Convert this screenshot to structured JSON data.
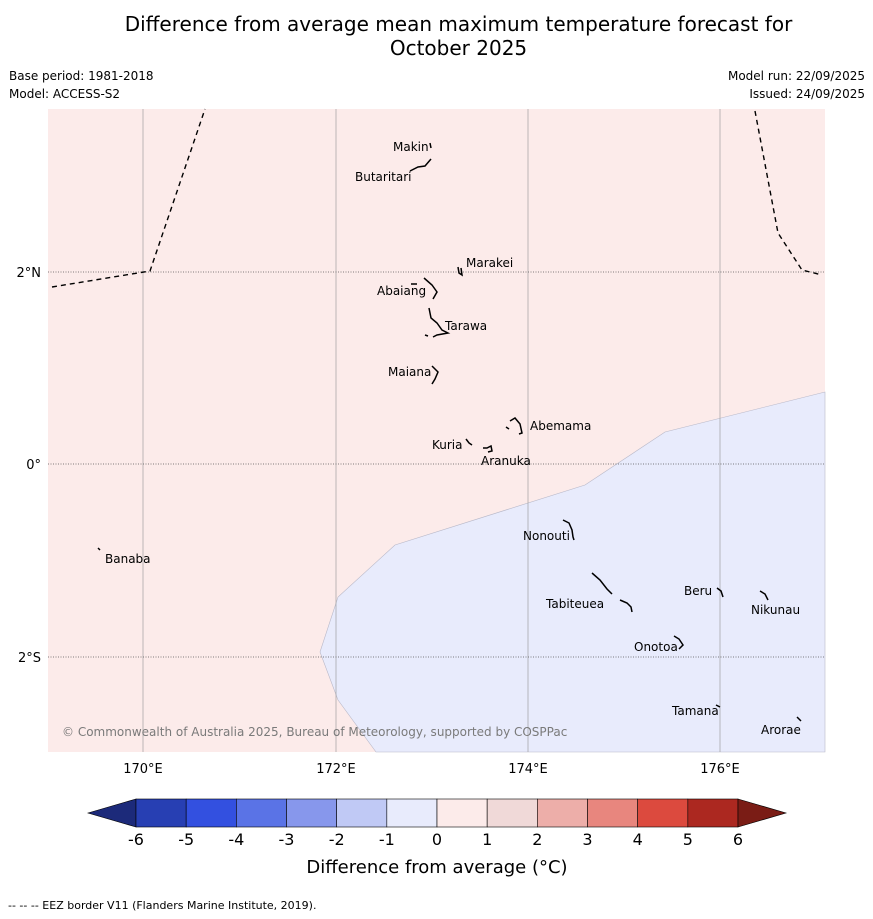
{
  "title": {
    "line1": "Difference from average mean maximum temperature forecast for",
    "line2": "October 2025"
  },
  "meta_left": {
    "base_period": "Base period: 1981-2018",
    "model": "Model: ACCESS-S2"
  },
  "meta_right": {
    "model_run": "Model run: 22/09/2025",
    "issued": "Issued: 24/09/2025"
  },
  "map": {
    "x_ticks": [
      "170°E",
      "172°E",
      "174°E",
      "176°E"
    ],
    "y_ticks": [
      "2°N",
      "0°",
      "2°S"
    ],
    "places": {
      "makin": "Makin",
      "butaritari": "Butaritari",
      "marakei": "Marakei",
      "abaiang": "Abaiang",
      "tarawa": "Tarawa",
      "maiana": "Maiana",
      "abemama": "Abemama",
      "kuria": "Kuria",
      "aranuka": "Aranuka",
      "nonouti": "Nonouti",
      "banaba": "Banaba",
      "beru": "Beru",
      "nikunau": "Nikunau",
      "tabiteuea": "Tabiteuea",
      "onotoa": "Onotoa",
      "tamana": "Tamana",
      "arorae": "Arorae"
    },
    "copyright": "© Commonwealth of Australia 2025, Bureau of Meteorology, supported by COSPPac",
    "colors": {
      "positive_0_1": "#fcebea",
      "negative_0_1": "#e8ebfc"
    }
  },
  "colorbar": {
    "label": "Difference from average (°C)",
    "ticks": [
      "-6",
      "-5",
      "-4",
      "-3",
      "-2",
      "-1",
      "0",
      "1",
      "2",
      "3",
      "4",
      "5",
      "6"
    ],
    "colors": [
      "#1c2a7a",
      "#273fb3",
      "#3350e0",
      "#5a73e6",
      "#8797ec",
      "#c0c9f5",
      "#e8ebfc",
      "#fcebea",
      "#f0d9d8",
      "#edaea9",
      "#e8867e",
      "#dc4a3e",
      "#ac2820",
      "#7a1c15"
    ]
  },
  "footer": "--  --  -- EEZ border V11 (Flanders Marine Institute, 2019)."
}
